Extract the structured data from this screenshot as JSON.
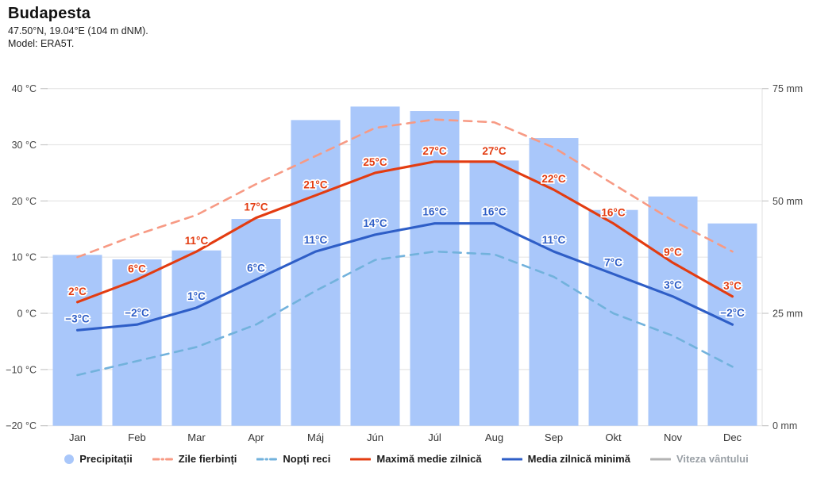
{
  "header": {
    "title": "Budapesta",
    "subtitle": "47.50°N, 19.04°E (104 m dNM).",
    "model_line": "Model: ERA5T."
  },
  "axes": {
    "left_tick_labels": [
      "40 °C",
      "30 °C",
      "20 °C",
      "10 °C",
      "0 °C",
      "−10 °C",
      "−20 °C"
    ],
    "left_tick_values": [
      40,
      30,
      20,
      10,
      0,
      -10,
      -20
    ],
    "left_range": [
      -20,
      40
    ],
    "right_tick_labels": [
      "75 mm",
      "50 mm",
      "25 mm",
      "0 mm"
    ],
    "right_tick_values": [
      75,
      50,
      25,
      0
    ],
    "right_range": [
      0,
      75
    ],
    "grid": true
  },
  "chart_data": {
    "type": "bar+line",
    "title": "Budapesta",
    "categories": [
      "Jan",
      "Feb",
      "Mar",
      "Apr",
      "Máj",
      "Jún",
      "Júl",
      "Aug",
      "Sep",
      "Okt",
      "Nov",
      "Dec"
    ],
    "legend_position": "bottom",
    "series": [
      {
        "id": "precipitation",
        "name": "Precipitații",
        "type": "bar",
        "axis": "right",
        "unit": "mm",
        "color": "#a9c7fa",
        "values": [
          38,
          37,
          39,
          46,
          68,
          71,
          70,
          59,
          64,
          48,
          51,
          45
        ]
      },
      {
        "id": "hot-days",
        "name": "Zile fierbinți",
        "type": "line",
        "style": "dashed",
        "axis": "left",
        "unit": "°C",
        "color": "#f79a84",
        "values": [
          10,
          14,
          17.5,
          23,
          28,
          33,
          34.5,
          34,
          29.5,
          23,
          16.5,
          11
        ]
      },
      {
        "id": "cold-nights",
        "name": "Nopți reci",
        "type": "line",
        "style": "dashed",
        "axis": "left",
        "unit": "°C",
        "color": "#72b2dc",
        "values": [
          -11,
          -8.5,
          -6,
          -2,
          4,
          9.5,
          11,
          10.5,
          6.5,
          0,
          -4,
          -9.5
        ]
      },
      {
        "id": "daily-max",
        "name": "Maximă medie zilnică",
        "type": "line",
        "style": "solid",
        "axis": "left",
        "unit": "°C",
        "color": "#e33c11",
        "values": [
          2,
          6,
          11,
          17,
          21,
          25,
          27,
          27,
          22,
          16,
          9,
          3
        ],
        "labels": [
          "2°C",
          "6°C",
          "11°C",
          "17°C",
          "21°C",
          "25°C",
          "27°C",
          "27°C",
          "22°C",
          "16°C",
          "9°C",
          "3°C"
        ]
      },
      {
        "id": "daily-min",
        "name": "Media zilnică minimă",
        "type": "line",
        "style": "solid",
        "axis": "left",
        "unit": "°C",
        "color": "#2e5ec7",
        "values": [
          -3,
          -2,
          1,
          6,
          11,
          14,
          16,
          16,
          11,
          7,
          3,
          -2
        ],
        "labels": [
          "−3°C",
          "−2°C",
          "1°C",
          "6°C",
          "11°C",
          "14°C",
          "16°C",
          "16°C",
          "11°C",
          "7°C",
          "3°C",
          "−2°C"
        ]
      },
      {
        "id": "wind-speed",
        "name": "Viteza vântului",
        "type": "line",
        "style": "solid",
        "axis": "none",
        "color": "#b3b3b3",
        "muted": true,
        "values": []
      }
    ]
  },
  "legend": {
    "items": [
      {
        "id": "precipitation",
        "label": "Precipitații",
        "marker": "circle",
        "color": "#a9c7fa",
        "muted": false
      },
      {
        "id": "hot-days",
        "label": "Zile fierbinți",
        "marker": "dashed-line",
        "color": "#f79a84",
        "muted": false
      },
      {
        "id": "cold-nights",
        "label": "Nopți reci",
        "marker": "dashed-line",
        "color": "#72b2dc",
        "muted": false
      },
      {
        "id": "daily-max",
        "label": "Maximă medie zilnică",
        "marker": "solid-line",
        "color": "#e33c11",
        "muted": false
      },
      {
        "id": "daily-min",
        "label": "Media zilnică minimă",
        "marker": "solid-line",
        "color": "#2e5ec7",
        "muted": false
      },
      {
        "id": "wind-speed",
        "label": "Viteza vântului",
        "marker": "solid-line",
        "color": "#b3b3b3",
        "muted": true
      }
    ]
  },
  "style": {
    "grid_color": "#e6e6e6",
    "tick_color": "#c9c9c9",
    "axis_text_color": "#444444",
    "month_text_color": "#333333",
    "label_halo_color": "#ffffff"
  }
}
